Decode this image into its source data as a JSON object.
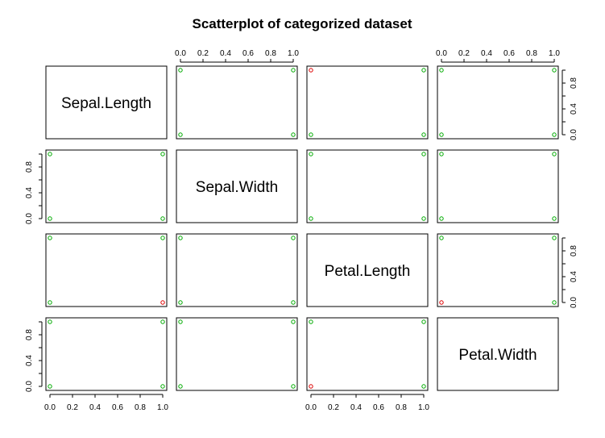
{
  "chart_data": {
    "type": "scatter",
    "title": "Scatterplot of categorized dataset",
    "variables": [
      "Sepal.Length",
      "Sepal.Width",
      "Petal.Length",
      "Petal.Width"
    ],
    "ticks": [
      "0.0",
      "0.2",
      "0.4",
      "0.6",
      "0.8",
      "1.0"
    ],
    "tick_values": [
      0,
      0.2,
      0.4,
      0.6,
      0.8,
      1.0
    ],
    "xlim": [
      0,
      1
    ],
    "ylim": [
      0,
      1
    ],
    "colors": {
      "group_1": "#00aa00",
      "group_2": "#dd0000"
    },
    "panels": [
      {
        "row": 0,
        "col": 1,
        "points": [
          [
            0,
            0,
            "group_1"
          ],
          [
            0,
            1,
            "group_1"
          ],
          [
            1,
            0,
            "group_1"
          ],
          [
            1,
            1,
            "group_1"
          ]
        ]
      },
      {
        "row": 0,
        "col": 2,
        "points": [
          [
            0,
            0,
            "group_1"
          ],
          [
            0,
            1,
            "group_2"
          ],
          [
            1,
            0,
            "group_1"
          ],
          [
            1,
            1,
            "group_1"
          ]
        ]
      },
      {
        "row": 0,
        "col": 3,
        "points": [
          [
            0,
            0,
            "group_1"
          ],
          [
            0,
            1,
            "group_1"
          ],
          [
            1,
            0,
            "group_1"
          ],
          [
            1,
            1,
            "group_1"
          ]
        ]
      },
      {
        "row": 1,
        "col": 0,
        "points": [
          [
            0,
            0,
            "group_1"
          ],
          [
            0,
            1,
            "group_1"
          ],
          [
            1,
            0,
            "group_1"
          ],
          [
            1,
            1,
            "group_1"
          ]
        ]
      },
      {
        "row": 1,
        "col": 2,
        "points": [
          [
            0,
            0,
            "group_1"
          ],
          [
            0,
            1,
            "group_1"
          ],
          [
            1,
            0,
            "group_1"
          ],
          [
            1,
            1,
            "group_1"
          ]
        ]
      },
      {
        "row": 1,
        "col": 3,
        "points": [
          [
            0,
            0,
            "group_1"
          ],
          [
            0,
            1,
            "group_1"
          ],
          [
            1,
            0,
            "group_1"
          ],
          [
            1,
            1,
            "group_1"
          ]
        ]
      },
      {
        "row": 2,
        "col": 0,
        "points": [
          [
            0,
            0,
            "group_1"
          ],
          [
            0,
            1,
            "group_1"
          ],
          [
            1,
            0,
            "group_2"
          ],
          [
            1,
            1,
            "group_1"
          ]
        ]
      },
      {
        "row": 2,
        "col": 1,
        "points": [
          [
            0,
            0,
            "group_1"
          ],
          [
            0,
            1,
            "group_1"
          ],
          [
            1,
            0,
            "group_1"
          ],
          [
            1,
            1,
            "group_1"
          ]
        ]
      },
      {
        "row": 2,
        "col": 3,
        "points": [
          [
            0,
            0,
            "group_2"
          ],
          [
            0,
            1,
            "group_1"
          ],
          [
            1,
            0,
            "group_1"
          ],
          [
            1,
            1,
            "group_1"
          ]
        ]
      },
      {
        "row": 3,
        "col": 0,
        "points": [
          [
            0,
            0,
            "group_1"
          ],
          [
            0,
            1,
            "group_1"
          ],
          [
            1,
            0,
            "group_1"
          ],
          [
            1,
            1,
            "group_1"
          ]
        ]
      },
      {
        "row": 3,
        "col": 1,
        "points": [
          [
            0,
            0,
            "group_1"
          ],
          [
            0,
            1,
            "group_1"
          ],
          [
            1,
            0,
            "group_1"
          ],
          [
            1,
            1,
            "group_1"
          ]
        ]
      },
      {
        "row": 3,
        "col": 2,
        "points": [
          [
            0,
            0,
            "group_2"
          ],
          [
            0,
            1,
            "group_1"
          ],
          [
            1,
            0,
            "group_1"
          ],
          [
            1,
            1,
            "group_1"
          ]
        ]
      }
    ],
    "axes": {
      "top": [
        1,
        3
      ],
      "bottom": [
        0,
        2
      ],
      "left": [
        1,
        3
      ],
      "right": [
        0,
        2
      ]
    },
    "grid": false
  }
}
